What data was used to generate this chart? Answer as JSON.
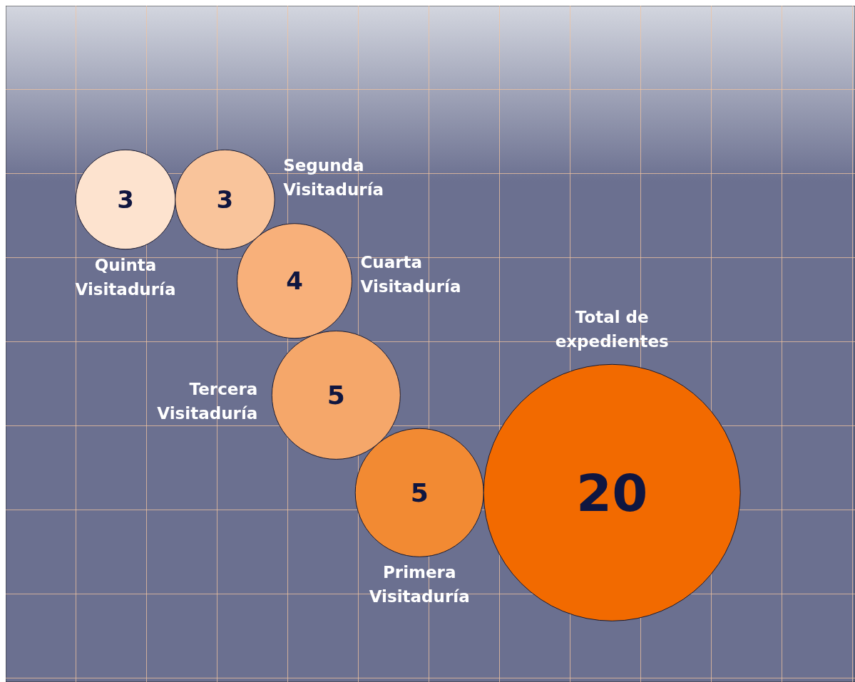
{
  "chart_data": {
    "type": "other",
    "categories": [
      "Quinta Visitaduría",
      "Segunda Visitaduría",
      "Cuarta Visitaduría",
      "Tercera Visitaduría",
      "Primera Visitaduría",
      "Total de expedientes"
    ],
    "values": [
      3,
      3,
      4,
      5,
      5,
      20
    ],
    "colors": [
      "#fde3cf",
      "#f9c49b",
      "#f8b07a",
      "#f5a76a",
      "#f28a33",
      "#f26a00"
    ],
    "data_labels": true
  }
}
